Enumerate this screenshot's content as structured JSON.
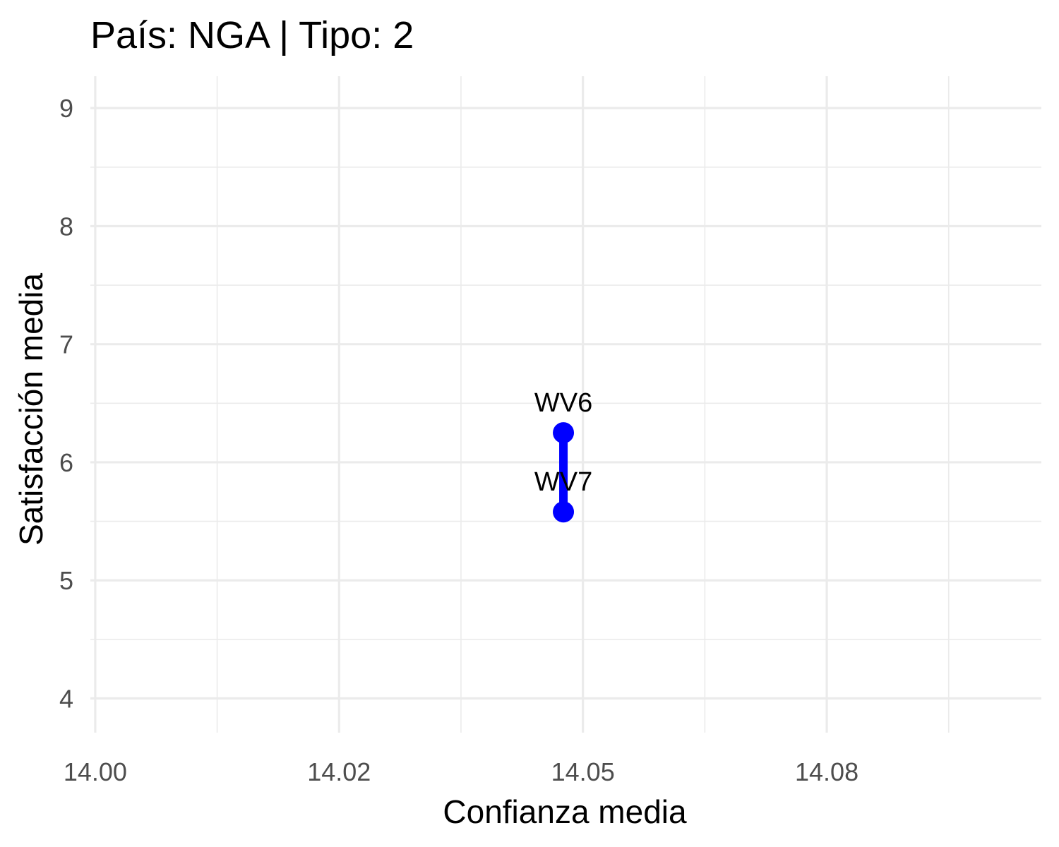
{
  "chart_data": {
    "type": "line",
    "title": "País: NGA | Tipo: 2",
    "xlabel": "Confianza media",
    "ylabel": "Satisfacción media",
    "xlim": [
      13.9995,
      14.097
    ],
    "ylim": [
      3.71,
      9.27
    ],
    "x_ticks": [
      14.0,
      14.025,
      14.05,
      14.075
    ],
    "x_tick_labels": [
      "14.00",
      "14.02",
      "14.05",
      "14.08"
    ],
    "y_ticks": [
      4,
      5,
      6,
      7,
      8,
      9
    ],
    "y_tick_labels": [
      "4",
      "5",
      "6",
      "7",
      "8",
      "9"
    ],
    "grid": true,
    "legend": "none",
    "series_color": "#0000ff",
    "points": [
      {
        "label": "WV6",
        "x": 14.048,
        "y": 6.25
      },
      {
        "label": "WV7",
        "x": 14.048,
        "y": 5.58
      }
    ]
  }
}
